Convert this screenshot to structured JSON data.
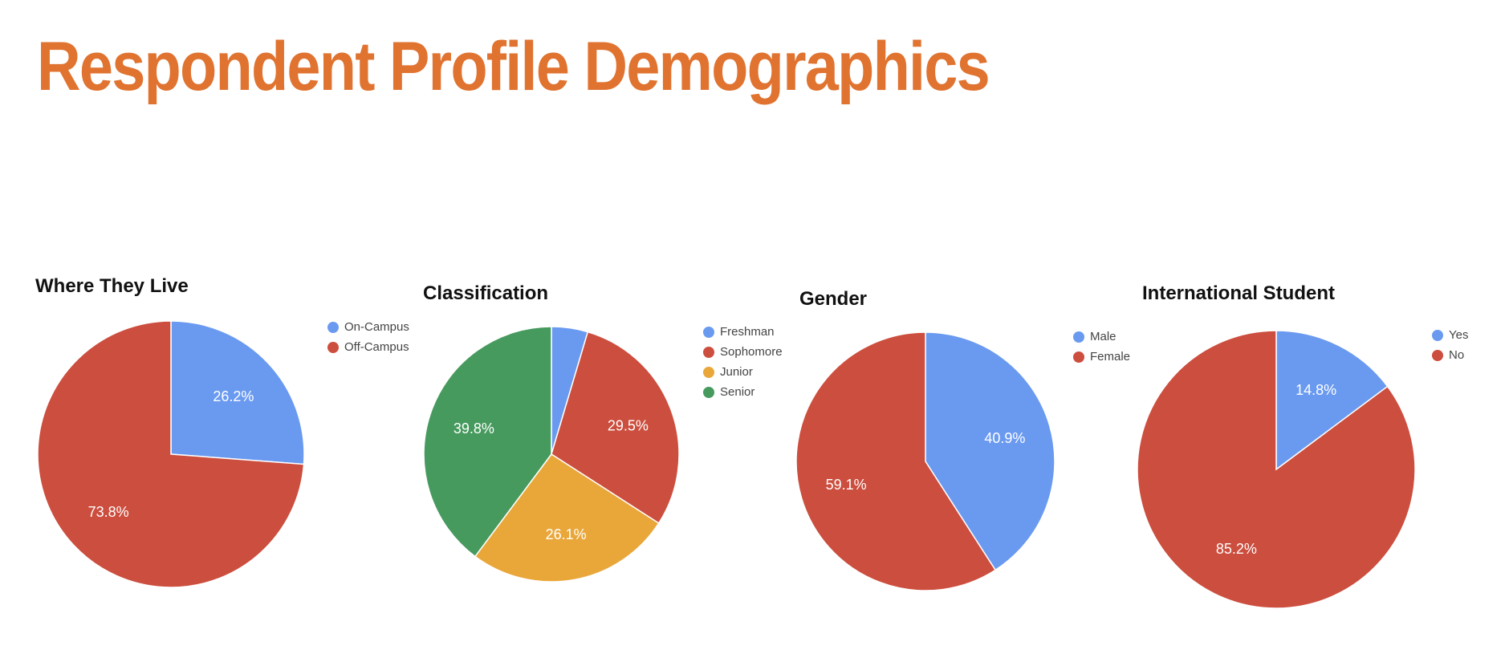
{
  "page": {
    "title": "Respondent Profile Demographics"
  },
  "chart_data": [
    {
      "type": "pie",
      "title": "Where They Live",
      "categories": [
        "On-Campus",
        "Off-Campus"
      ],
      "values": [
        26.2,
        73.8
      ],
      "labels": [
        "26.2%",
        "73.8%"
      ],
      "colors": [
        "#6A9AF0",
        "#CC4E3E"
      ],
      "legend": "right"
    },
    {
      "type": "pie",
      "title": "Classification",
      "categories": [
        "Freshman",
        "Sophomore",
        "Junior",
        "Senior"
      ],
      "values": [
        4.6,
        29.5,
        26.1,
        39.8
      ],
      "labels": [
        "",
        "29.5%",
        "26.1%",
        "39.8%"
      ],
      "colors": [
        "#6A9AF0",
        "#CC4E3E",
        "#E9A73A",
        "#469A5E"
      ],
      "legend": "right"
    },
    {
      "type": "pie",
      "title": "Gender",
      "categories": [
        "Male",
        "Female"
      ],
      "values": [
        40.9,
        59.1
      ],
      "labels": [
        "40.9%",
        "59.1%"
      ],
      "colors": [
        "#6A9AF0",
        "#CC4E3E"
      ],
      "legend": "right"
    },
    {
      "type": "pie",
      "title": "International Student",
      "categories": [
        "Yes",
        "No"
      ],
      "values": [
        14.8,
        85.2
      ],
      "labels": [
        "14.8%",
        "85.2%"
      ],
      "colors": [
        "#6A9AF0",
        "#CC4E3E"
      ],
      "legend": "right"
    }
  ]
}
